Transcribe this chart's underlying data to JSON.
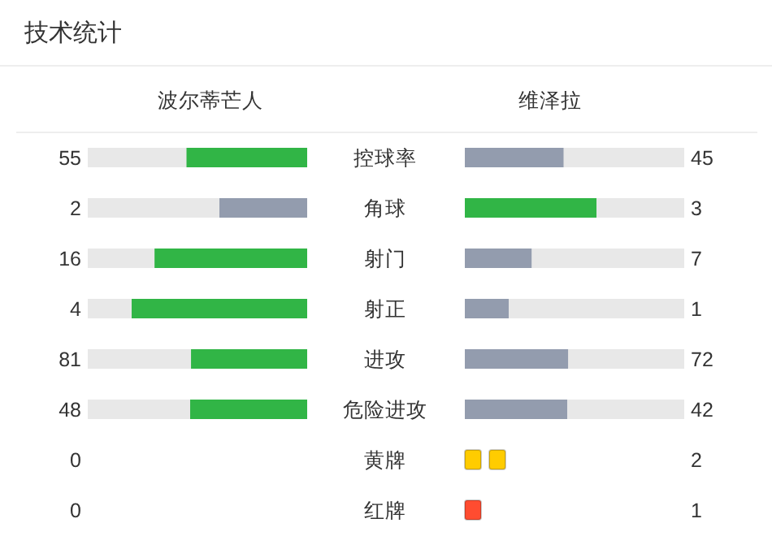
{
  "chart_data": [
    {
      "type": "other",
      "title": "技术统计",
      "categories": [
        "控球率",
        "角球",
        "射门",
        "射正",
        "进攻",
        "危险进攻"
      ],
      "data_labels": true,
      "series": [
        {
          "name": "波尔蒂芒人",
          "colors": [
            "#31b546",
            "#939cae",
            "#31b546",
            "#31b546",
            "#31b546",
            "#31b546"
          ],
          "values": [
            55,
            2,
            16,
            4,
            81,
            48
          ]
        },
        {
          "name": "维泽拉",
          "colors": [
            "#939cae",
            "#31b546",
            "#939cae",
            "#939cae",
            "#939cae",
            "#939cae"
          ],
          "values": [
            45,
            3,
            7,
            1,
            72,
            42
          ]
        }
      ]
    },
    {
      "type": "other",
      "categories": [
        "黄牌",
        "红牌"
      ],
      "data_labels": true,
      "series": [
        {
          "values": [
            0,
            0
          ]
        },
        {
          "colors": [
            "#ffcc00",
            "#ff4c30"
          ],
          "values": [
            2,
            1
          ]
        }
      ]
    }
  ]
}
